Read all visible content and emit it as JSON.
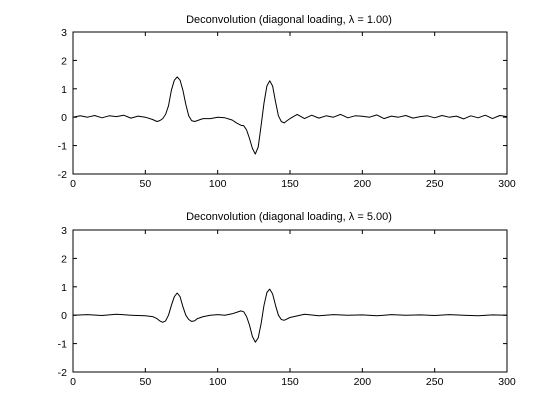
{
  "chart_data": [
    {
      "type": "line",
      "title": "Deconvolution (diagonal loading, λ = 1.00)",
      "xlabel": "",
      "ylabel": "",
      "xlim": [
        0,
        300
      ],
      "ylim": [
        -2,
        3
      ],
      "xticks": [
        0,
        50,
        100,
        150,
        200,
        250,
        300
      ],
      "yticks": [
        -2,
        -1,
        0,
        1,
        2,
        3
      ],
      "grid": false,
      "series": [
        {
          "color": "#000000",
          "x": [
            0,
            5,
            10,
            15,
            20,
            25,
            30,
            35,
            40,
            45,
            50,
            55,
            58,
            60,
            62,
            64,
            66,
            68,
            70,
            72,
            74,
            76,
            78,
            80,
            82,
            84,
            86,
            88,
            90,
            95,
            100,
            105,
            110,
            113,
            116,
            118,
            120,
            122,
            124,
            126,
            128,
            130,
            132,
            134,
            136,
            138,
            140,
            142,
            144,
            146,
            148,
            150,
            155,
            160,
            165,
            170,
            175,
            180,
            185,
            190,
            195,
            200,
            205,
            210,
            215,
            220,
            225,
            230,
            235,
            240,
            245,
            250,
            255,
            260,
            265,
            270,
            275,
            280,
            285,
            290,
            295,
            300
          ],
          "y": [
            0.0,
            0.05,
            0.0,
            0.06,
            -0.02,
            0.05,
            0.02,
            0.07,
            -0.03,
            0.04,
            0.0,
            -0.08,
            -0.15,
            -0.12,
            -0.05,
            0.1,
            0.4,
            0.95,
            1.3,
            1.42,
            1.3,
            0.95,
            0.45,
            0.05,
            -0.12,
            -0.15,
            -0.12,
            -0.08,
            -0.05,
            -0.05,
            0.0,
            -0.02,
            -0.1,
            -0.2,
            -0.28,
            -0.3,
            -0.45,
            -0.75,
            -1.1,
            -1.3,
            -1.05,
            -0.3,
            0.5,
            1.1,
            1.28,
            1.1,
            0.55,
            0.05,
            -0.15,
            -0.2,
            -0.12,
            -0.05,
            0.1,
            -0.05,
            0.07,
            -0.03,
            0.05,
            0.0,
            0.1,
            -0.02,
            0.05,
            0.03,
            0.0,
            0.08,
            -0.05,
            0.04,
            0.0,
            0.06,
            -0.03,
            0.02,
            0.05,
            -0.02,
            0.06,
            0.0,
            0.04,
            -0.06,
            0.05,
            -0.02,
            0.07,
            -0.05,
            0.06,
            0.02
          ]
        }
      ]
    },
    {
      "type": "line",
      "title": "Deconvolution (diagonal loading, λ = 5.00)",
      "xlabel": "",
      "ylabel": "",
      "xlim": [
        0,
        300
      ],
      "ylim": [
        -2,
        3
      ],
      "xticks": [
        0,
        50,
        100,
        150,
        200,
        250,
        300
      ],
      "yticks": [
        -2,
        -1,
        0,
        1,
        2,
        3
      ],
      "grid": false,
      "series": [
        {
          "color": "#000000",
          "x": [
            0,
            10,
            20,
            30,
            40,
            50,
            55,
            58,
            60,
            62,
            64,
            66,
            68,
            70,
            72,
            74,
            76,
            78,
            80,
            82,
            84,
            86,
            90,
            95,
            100,
            105,
            110,
            113,
            116,
            118,
            120,
            122,
            124,
            126,
            128,
            130,
            132,
            134,
            136,
            138,
            140,
            142,
            144,
            146,
            150,
            160,
            170,
            180,
            190,
            200,
            210,
            220,
            230,
            240,
            250,
            260,
            270,
            280,
            290,
            300
          ],
          "y": [
            0.0,
            0.02,
            -0.01,
            0.03,
            0.0,
            -0.02,
            -0.05,
            -0.12,
            -0.2,
            -0.25,
            -0.2,
            0.0,
            0.35,
            0.65,
            0.78,
            0.65,
            0.3,
            0.0,
            -0.15,
            -0.22,
            -0.2,
            -0.12,
            -0.05,
            0.0,
            0.02,
            0.0,
            0.05,
            0.1,
            0.15,
            0.12,
            -0.05,
            -0.35,
            -0.75,
            -0.95,
            -0.8,
            -0.3,
            0.35,
            0.8,
            0.92,
            0.75,
            0.35,
            0.0,
            -0.15,
            -0.18,
            -0.08,
            0.03,
            -0.02,
            0.02,
            0.0,
            0.01,
            -0.02,
            0.02,
            0.0,
            0.01,
            -0.01,
            0.02,
            0.0,
            -0.02,
            0.01,
            0.0
          ]
        }
      ]
    }
  ]
}
